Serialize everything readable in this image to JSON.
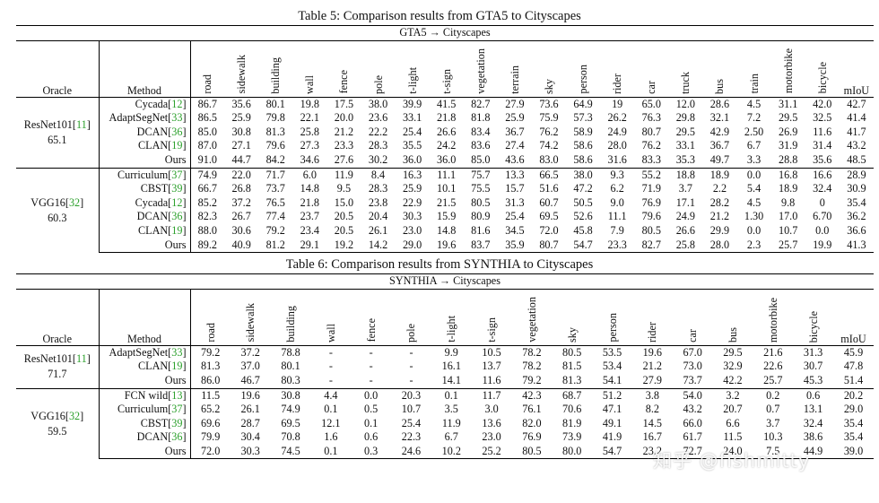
{
  "table5": {
    "caption": "Table 5: Comparison results from GTA5 to Cityscapes",
    "setting": "GTA5 → Cityscapes",
    "oracle_header": "Oracle",
    "method_header": "Method",
    "columns": [
      "road",
      "sidewalk",
      "building",
      "wall",
      "fence",
      "pole",
      "t-light",
      "t-sign",
      "vegetation",
      "terrain",
      "sky",
      "person",
      "rider",
      "car",
      "truck",
      "bus",
      "train",
      "motorbike",
      "bicycle",
      "mIoU"
    ],
    "groups": [
      {
        "oracle_name": "ResNet101[",
        "oracle_ref": "11",
        "oracle_close": "]",
        "oracle_value": "65.1",
        "rows": [
          {
            "method": "Cycada[",
            "ref": "12",
            "close": "]",
            "values": [
              "86.7",
              "35.6",
              "80.1",
              "19.8",
              "17.5",
              "38.0",
              "39.9",
              "41.5",
              "82.7",
              "27.9",
              "73.6",
              "64.9",
              "19",
              "65.0",
              "12.0",
              "28.6",
              "4.5",
              "31.1",
              "42.0",
              "42.7"
            ],
            "bold": [
              5,
              6,
              7,
              11,
              18
            ]
          },
          {
            "method": "AdaptSegNet[",
            "ref": "33",
            "close": "]",
            "values": [
              "86.5",
              "25.9",
              "79.8",
              "22.1",
              "20.0",
              "23.6",
              "33.1",
              "21.8",
              "81.8",
              "25.9",
              "75.9",
              "57.3",
              "26.2",
              "76.3",
              "29.8",
              "32.1",
              "7.2",
              "29.5",
              "32.5",
              "41.4"
            ],
            "bold": [
              16
            ]
          },
          {
            "method": "DCAN[",
            "ref": "36",
            "close": "]",
            "values": [
              "85.0",
              "30.8",
              "81.3",
              "25.8",
              "21.2",
              "22.2",
              "25.4",
              "26.6",
              "83.4",
              "36.7",
              "76.2",
              "58.9",
              "24.9",
              "80.7",
              "29.5",
              "42.9",
              "2.50",
              "26.9",
              "11.6",
              "41.7"
            ],
            "bold": []
          },
          {
            "method": "CLAN[",
            "ref": "19",
            "close": "]",
            "values": [
              "87.0",
              "27.1",
              "79.6",
              "27.3",
              "23.3",
              "28.3",
              "35.5",
              "24.2",
              "83.6",
              "27.4",
              "74.2",
              "58.6",
              "28.0",
              "76.2",
              "33.1",
              "36.7",
              "6.7",
              "31.9",
              "31.4",
              "43.2"
            ],
            "bold": [
              17
            ]
          },
          {
            "method": "Ours",
            "ref": "",
            "close": "",
            "values": [
              "91.0",
              "44.7",
              "84.2",
              "34.6",
              "27.6",
              "30.2",
              "36.0",
              "36.0",
              "85.0",
              "43.6",
              "83.0",
              "58.6",
              "31.6",
              "83.3",
              "35.3",
              "49.7",
              "3.3",
              "28.8",
              "35.6",
              "48.5"
            ],
            "bold": [
              0,
              1,
              2,
              3,
              4,
              8,
              9,
              10,
              12,
              13,
              14,
              15,
              19
            ]
          }
        ]
      },
      {
        "oracle_name": "VGG16[",
        "oracle_ref": "32",
        "oracle_close": "]",
        "oracle_value": "60.3",
        "rows": [
          {
            "method": "Curriculum[",
            "ref": "37",
            "close": "]",
            "values": [
              "74.9",
              "22.0",
              "71.7",
              "6.0",
              "11.9",
              "8.4",
              "16.3",
              "11.1",
              "75.7",
              "13.3",
              "66.5",
              "38.0",
              "9.3",
              "55.2",
              "18.8",
              "18.9",
              "0.0",
              "16.8",
              "16.6",
              "28.9"
            ],
            "bold": []
          },
          {
            "method": "CBST[",
            "ref": "39",
            "close": "]",
            "values": [
              "66.7",
              "26.8",
              "73.7",
              "14.8",
              "9.5",
              "28.3",
              "25.9",
              "10.1",
              "75.5",
              "15.7",
              "51.6",
              "47.2",
              "6.2",
              "71.9",
              "3.7",
              "2.2",
              "5.4",
              "18.9",
              "32.4",
              "30.9"
            ],
            "bold": [
              5,
              16,
              18
            ]
          },
          {
            "method": "Cycada[",
            "ref": "12",
            "close": "]",
            "values": [
              "85.2",
              "37.2",
              "76.5",
              "21.8",
              "15.0",
              "23.8",
              "22.9",
              "21.5",
              "80.5",
              "31.3",
              "60.7",
              "50.5",
              "9.0",
              "76.9",
              "17.1",
              "28.2",
              "4.5",
              "9.8",
              "0",
              "35.4"
            ],
            "bold": [
              7
            ]
          },
          {
            "method": "DCAN[",
            "ref": "36",
            "close": "]",
            "values": [
              "82.3",
              "26.7",
              "77.4",
              "23.7",
              "20.5",
              "20.4",
              "30.3",
              "15.9",
              "80.9",
              "25.4",
              "69.5",
              "52.6",
              "11.1",
              "79.6",
              "24.9",
              "21.2",
              "1.30",
              "17.0",
              "6.70",
              "36.2"
            ],
            "bold": [
              4,
              6
            ]
          },
          {
            "method": "CLAN[",
            "ref": "19",
            "close": "]",
            "values": [
              "88.0",
              "30.6",
              "79.2",
              "23.4",
              "20.5",
              "26.1",
              "23.0",
              "14.8",
              "81.6",
              "34.5",
              "72.0",
              "45.8",
              "7.9",
              "80.5",
              "26.6",
              "29.9",
              "0.0",
              "10.7",
              "0.0",
              "36.6"
            ],
            "bold": [
              4,
              14,
              15
            ]
          },
          {
            "method": "Ours",
            "ref": "",
            "close": "",
            "values": [
              "89.2",
              "40.9",
              "81.2",
              "29.1",
              "19.2",
              "14.2",
              "29.0",
              "19.6",
              "83.7",
              "35.9",
              "80.7",
              "54.7",
              "23.3",
              "82.7",
              "25.8",
              "28.0",
              "2.3",
              "25.7",
              "19.9",
              "41.3"
            ],
            "bold": [
              0,
              1,
              2,
              3,
              8,
              9,
              10,
              11,
              12,
              13,
              17,
              19
            ]
          }
        ]
      }
    ]
  },
  "table6": {
    "caption": "Table 6: Comparison results from SYNTHIA to Cityscapes",
    "setting": "SYNTHIA → Cityscapes",
    "oracle_header": "Oracle",
    "method_header": "Method",
    "columns": [
      "road",
      "sidewalk",
      "building",
      "wall",
      "fence",
      "pole",
      "t-light",
      "t-sign",
      "vegetation",
      "sky",
      "person",
      "rider",
      "car",
      "bus",
      "motorbike",
      "bicycle",
      "mIoU"
    ],
    "groups": [
      {
        "oracle_name": "ResNet101[",
        "oracle_ref": "11",
        "oracle_close": "]",
        "oracle_value": "71.7",
        "rows": [
          {
            "method": "AdaptSegNet[",
            "ref": "33",
            "close": "]",
            "values": [
              "79.2",
              "37.2",
              "78.8",
              "-",
              "-",
              "-",
              "9.9",
              "10.5",
              "78.2",
              "80.5",
              "53.5",
              "19.6",
              "67.0",
              "29.5",
              "21.6",
              "31.3",
              "45.9"
            ],
            "bold": []
          },
          {
            "method": "CLAN[",
            "ref": "19",
            "close": "]",
            "values": [
              "81.3",
              "37.0",
              "80.1",
              "-",
              "-",
              "-",
              "16.1",
              "13.7",
              "78.2",
              "81.5",
              "53.4",
              "21.2",
              "73.0",
              "32.9",
              "22.6",
              "30.7",
              "47.8"
            ],
            "bold": [
              6,
              7,
              9
            ]
          },
          {
            "method": "Ours",
            "ref": "",
            "close": "",
            "values": [
              "86.0",
              "46.7",
              "80.3",
              "-",
              "-",
              "-",
              "14.1",
              "11.6",
              "79.2",
              "81.3",
              "54.1",
              "27.9",
              "73.7",
              "42.2",
              "25.7",
              "45.3",
              "51.4"
            ],
            "bold": [
              0,
              1,
              2,
              8,
              10,
              11,
              12,
              13,
              14,
              15,
              16
            ]
          }
        ]
      },
      {
        "oracle_name": "VGG16[",
        "oracle_ref": "32",
        "oracle_close": "]",
        "oracle_value": "59.5",
        "rows": [
          {
            "method": "FCN wild[",
            "ref": "13",
            "close": "]",
            "values": [
              "11.5",
              "19.6",
              "30.8",
              "4.4",
              "0.0",
              "20.3",
              "0.1",
              "11.7",
              "42.3",
              "68.7",
              "51.2",
              "3.8",
              "54.0",
              "3.2",
              "0.2",
              "0.6",
              "20.2"
            ],
            "bold": []
          },
          {
            "method": "Curriculum[",
            "ref": "37",
            "close": "]",
            "values": [
              "65.2",
              "26.1",
              "74.9",
              "0.1",
              "0.5",
              "10.7",
              "3.5",
              "3.0",
              "76.1",
              "70.6",
              "47.1",
              "8.2",
              "43.2",
              "20.7",
              "0.7",
              "13.1",
              "29.0"
            ],
            "bold": [
              2
            ]
          },
          {
            "method": "CBST[",
            "ref": "39",
            "close": "]",
            "values": [
              "69.6",
              "28.7",
              "69.5",
              "12.1",
              "0.1",
              "25.4",
              "11.9",
              "13.6",
              "82.0",
              "81.9",
              "49.1",
              "14.5",
              "66.0",
              "6.6",
              "3.7",
              "32.4",
              "35.4"
            ],
            "bold": [
              3,
              5,
              6,
              8,
              9
            ]
          },
          {
            "method": "DCAN[",
            "ref": "36",
            "close": "]",
            "values": [
              "79.9",
              "30.4",
              "70.8",
              "1.6",
              "0.6",
              "22.3",
              "6.7",
              "23.0",
              "76.9",
              "73.9",
              "41.9",
              "16.7",
              "61.7",
              "11.5",
              "10.3",
              "38.6",
              "35.4"
            ],
            "bold": [
              1,
              4
            ]
          },
          {
            "method": "Ours",
            "ref": "",
            "close": "",
            "values": [
              "72.0",
              "30.3",
              "74.5",
              "0.1",
              "0.3",
              "24.6",
              "10.2",
              "25.2",
              "80.5",
              "80.0",
              "54.7",
              "23.2",
              "72.7",
              "24.0",
              "7.5",
              "44.9",
              "39.0"
            ],
            "bold": [
              0,
              7,
              10,
              11,
              12,
              13,
              15,
              16
            ]
          }
        ]
      }
    ]
  },
  "watermark": "知乎 @fishmitty"
}
